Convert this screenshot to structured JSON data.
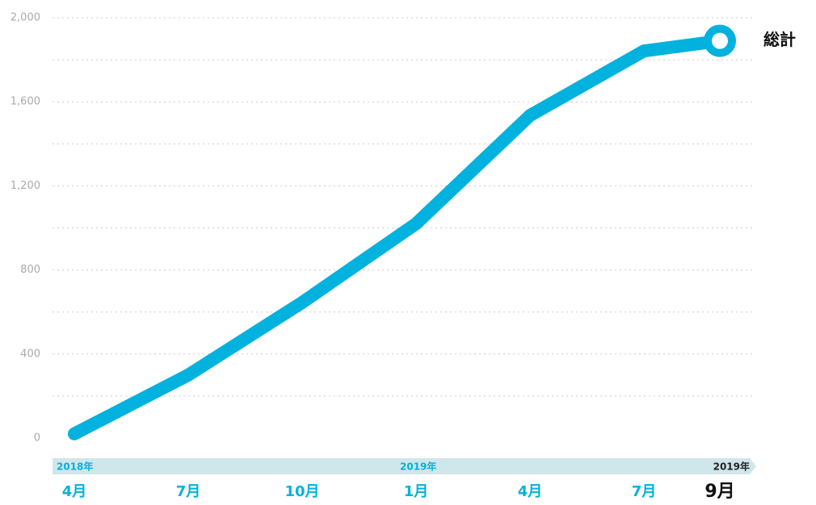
{
  "chart_data": {
    "type": "line",
    "x": [
      "2018-04",
      "2018-07",
      "2018-10",
      "2019-01",
      "2019-04",
      "2019-07",
      "2019-09"
    ],
    "categories": [
      "4月",
      "7月",
      "10月",
      "1月",
      "4月",
      "7月",
      "9月"
    ],
    "year_labels": [
      "2018年",
      "2019年",
      "2019年"
    ],
    "series": [
      {
        "name": "総計",
        "color": "#00b2dd",
        "values": [
          20,
          300,
          645,
          1020,
          1535,
          1842,
          1890
        ]
      }
    ],
    "ylim": [
      0,
      2000
    ],
    "yticks": [
      0,
      400,
      800,
      {
        "value": 1200,
        "label": "1,200"
      },
      {
        "value": 1600,
        "label": "1,600"
      },
      {
        "value": 2000,
        "label": "2,000"
      }
    ],
    "minor_yticks": [
      200,
      600,
      1000,
      1400,
      1800
    ],
    "grid": true
  }
}
